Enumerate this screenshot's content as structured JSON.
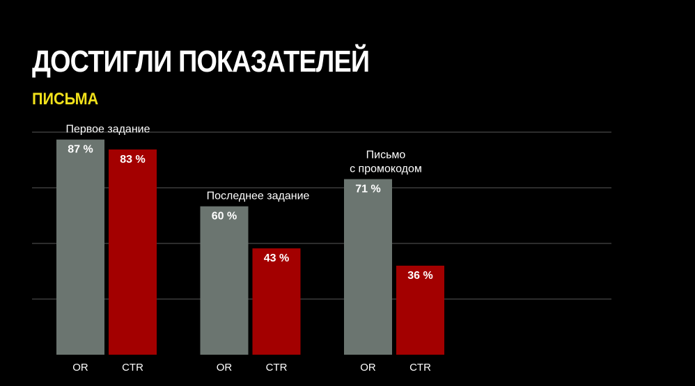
{
  "header": {
    "title": "ДОСТИГЛИ ПОКАЗАТЕЛЕЙ",
    "subtitle": "ПИСЬМА"
  },
  "colors": {
    "background": "#000000",
    "subtitle": "#f2e21b",
    "or_bar": "#6b7570",
    "ctr_bar": "#a30000",
    "grid": "#5a5a5a"
  },
  "chart_data": {
    "type": "bar",
    "categories": [
      "Первое задание",
      "Последнее задание",
      "Письмо с промокодом"
    ],
    "category_label_lines": [
      [
        "Первое задание"
      ],
      [
        "Последнее задание"
      ],
      [
        "Письмо",
        "с промокодом"
      ]
    ],
    "bar_labels": [
      "OR",
      "CTR"
    ],
    "series": [
      {
        "name": "OR",
        "values": [
          87,
          60,
          71
        ],
        "labels": [
          "87 %",
          "60 %",
          "71 %"
        ]
      },
      {
        "name": "CTR",
        "values": [
          83,
          43,
          36
        ],
        "labels": [
          "83 %",
          "43 %",
          "36 %"
        ]
      }
    ],
    "ylim": [
      0,
      90
    ],
    "grid": true,
    "legend": "none"
  }
}
